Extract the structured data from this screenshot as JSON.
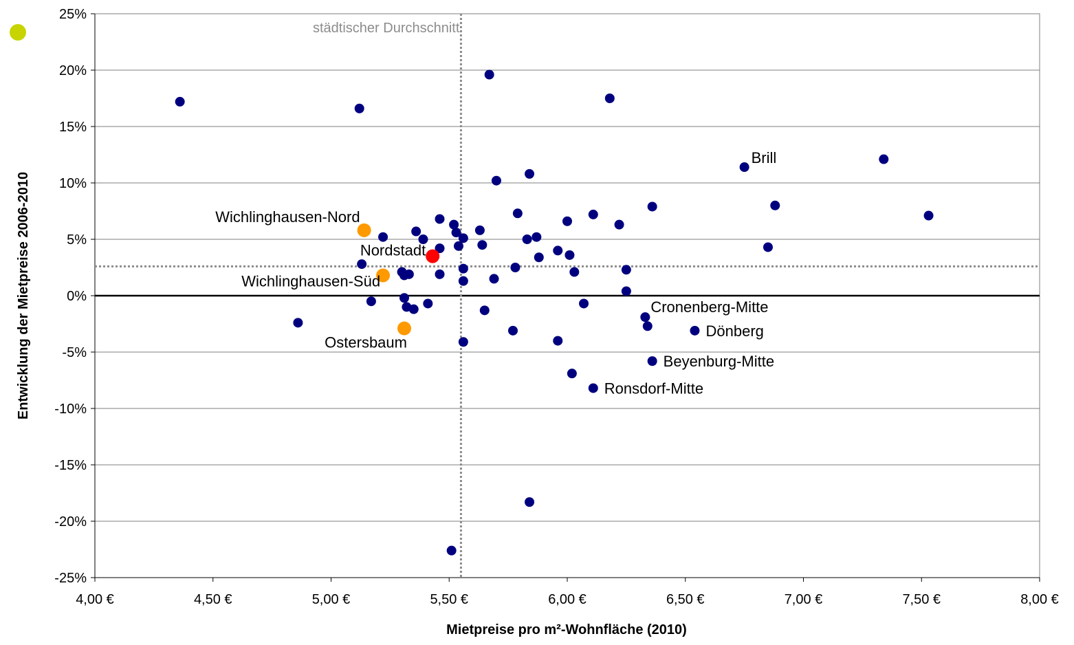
{
  "chart_data": {
    "type": "scatter",
    "xlabel": "Mietpreise pro m²-Wohnfläche (2010)",
    "ylabel": "Entwicklung der Mietpreise 2006-2010",
    "xlim": [
      4.0,
      8.0
    ],
    "ylim": [
      -25,
      25
    ],
    "x_ticks": [
      "4,00 €",
      "4,50 €",
      "5,00 €",
      "5,50 €",
      "6,00 €",
      "6,50 €",
      "7,00 €",
      "7,50 €",
      "8,00 €"
    ],
    "y_ticks": [
      "25%",
      "20%",
      "15%",
      "10%",
      "5%",
      "0%",
      "-5%",
      "-10%",
      "-15%",
      "-20%",
      "-25%"
    ],
    "grid": true,
    "reference_lines": {
      "x": 5.55,
      "y": 2.6,
      "x_label": "städtischer Durchschnitt"
    },
    "colors": {
      "default": "#00007f",
      "highlight_orange": "#ff9900",
      "highlight_red": "#ff0000",
      "reference": "#8c8c8c",
      "legend_marker": "#c8d400"
    },
    "points": [
      {
        "x": 4.36,
        "y": 17.2
      },
      {
        "x": 5.12,
        "y": 16.6
      },
      {
        "x": 5.67,
        "y": 19.6
      },
      {
        "x": 6.18,
        "y": 17.5
      },
      {
        "x": 4.86,
        "y": -2.4
      },
      {
        "x": 5.13,
        "y": 2.8
      },
      {
        "x": 5.17,
        "y": -0.5
      },
      {
        "x": 5.22,
        "y": 5.2
      },
      {
        "x": 5.3,
        "y": 2.1
      },
      {
        "x": 5.31,
        "y": 1.8
      },
      {
        "x": 5.31,
        "y": -0.2
      },
      {
        "x": 5.32,
        "y": -1.0
      },
      {
        "x": 5.33,
        "y": 1.9
      },
      {
        "x": 5.35,
        "y": -1.2
      },
      {
        "x": 5.36,
        "y": 5.7
      },
      {
        "x": 5.39,
        "y": 5.0
      },
      {
        "x": 5.41,
        "y": -0.7
      },
      {
        "x": 5.46,
        "y": 6.8
      },
      {
        "x": 5.46,
        "y": 4.2
      },
      {
        "x": 5.46,
        "y": 1.9
      },
      {
        "x": 5.52,
        "y": 6.3
      },
      {
        "x": 5.53,
        "y": 5.6
      },
      {
        "x": 5.54,
        "y": 4.4
      },
      {
        "x": 5.56,
        "y": 5.1
      },
      {
        "x": 5.56,
        "y": 2.4
      },
      {
        "x": 5.56,
        "y": 1.3
      },
      {
        "x": 5.56,
        "y": -4.1
      },
      {
        "x": 5.51,
        "y": -22.6
      },
      {
        "x": 5.63,
        "y": 5.8
      },
      {
        "x": 5.64,
        "y": 4.5
      },
      {
        "x": 5.65,
        "y": -1.3
      },
      {
        "x": 5.69,
        "y": 1.5
      },
      {
        "x": 5.7,
        "y": 10.2
      },
      {
        "x": 5.77,
        "y": -3.1
      },
      {
        "x": 5.78,
        "y": 2.5
      },
      {
        "x": 5.79,
        "y": 7.3
      },
      {
        "x": 5.83,
        "y": 5.0
      },
      {
        "x": 5.84,
        "y": 10.8
      },
      {
        "x": 5.84,
        "y": -18.3
      },
      {
        "x": 5.87,
        "y": 5.2
      },
      {
        "x": 5.88,
        "y": 3.4
      },
      {
        "x": 5.96,
        "y": 4.0
      },
      {
        "x": 5.96,
        "y": -4.0
      },
      {
        "x": 6.0,
        "y": 6.6
      },
      {
        "x": 6.01,
        "y": 3.6
      },
      {
        "x": 6.02,
        "y": -6.9
      },
      {
        "x": 6.03,
        "y": 2.1
      },
      {
        "x": 6.07,
        "y": -0.7
      },
      {
        "x": 6.11,
        "y": 7.2
      },
      {
        "x": 6.11,
        "y": -8.2,
        "label": "Ronsdorf-Mitte"
      },
      {
        "x": 6.22,
        "y": 6.3
      },
      {
        "x": 6.25,
        "y": 2.3
      },
      {
        "x": 6.25,
        "y": 0.4
      },
      {
        "x": 6.33,
        "y": -1.9,
        "label": "Cronenberg-Mitte"
      },
      {
        "x": 6.34,
        "y": -2.7
      },
      {
        "x": 6.36,
        "y": 7.9
      },
      {
        "x": 6.36,
        "y": -5.8,
        "label": "Beyenburg-Mitte"
      },
      {
        "x": 6.54,
        "y": -3.1,
        "label": "Dönberg"
      },
      {
        "x": 6.75,
        "y": 11.4,
        "label": "Brill"
      },
      {
        "x": 6.85,
        "y": 4.3
      },
      {
        "x": 6.88,
        "y": 8.0
      },
      {
        "x": 7.34,
        "y": 12.1
      },
      {
        "x": 7.53,
        "y": 7.1
      },
      {
        "x": 5.14,
        "y": 5.8,
        "color": "orange",
        "label": "Wichlinghausen-Nord"
      },
      {
        "x": 5.22,
        "y": 1.8,
        "color": "orange",
        "label": "Wichlinghausen-Süd"
      },
      {
        "x": 5.31,
        "y": -2.9,
        "color": "orange",
        "label": "Ostersbaum"
      },
      {
        "x": 5.43,
        "y": 3.5,
        "color": "red",
        "label": "Nordstadt"
      }
    ]
  }
}
